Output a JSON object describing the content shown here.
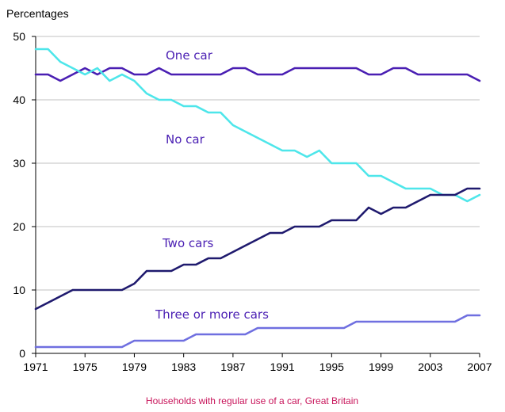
{
  "chart_data": {
    "type": "line",
    "title": "",
    "ylabel": "Percentages",
    "xlabel": "",
    "caption": "Households with regular use of a car, Great Britain",
    "xlim": [
      1971,
      2007
    ],
    "ylim": [
      0,
      50
    ],
    "x_ticks": [
      1971,
      1975,
      1979,
      1983,
      1987,
      1991,
      1995,
      1999,
      2003,
      2007
    ],
    "y_ticks": [
      0,
      10,
      20,
      30,
      40,
      50
    ],
    "grid": "horizontal",
    "x": [
      1971,
      1972,
      1973,
      1974,
      1975,
      1976,
      1977,
      1978,
      1979,
      1980,
      1981,
      1982,
      1983,
      1984,
      1985,
      1986,
      1987,
      1988,
      1989,
      1990,
      1991,
      1992,
      1993,
      1994,
      1995,
      1996,
      1997,
      1998,
      1999,
      2000,
      2001,
      2002,
      2003,
      2004,
      2005,
      2006,
      2007
    ],
    "series": [
      {
        "name": "One car",
        "color": "#4a1fb3",
        "values": [
          44,
          44,
          43,
          44,
          45,
          44,
          45,
          45,
          44,
          44,
          45,
          44,
          44,
          44,
          44,
          44,
          45,
          45,
          44,
          44,
          44,
          45,
          45,
          45,
          45,
          45,
          45,
          44,
          44,
          45,
          45,
          44,
          44,
          44,
          44,
          44,
          43
        ]
      },
      {
        "name": "No car",
        "color": "#4ee6ea",
        "values": [
          48,
          48,
          46,
          45,
          44,
          45,
          43,
          44,
          43,
          41,
          40,
          40,
          39,
          39,
          38,
          38,
          36,
          35,
          34,
          33,
          32,
          32,
          31,
          32,
          30,
          30,
          30,
          28,
          28,
          27,
          26,
          26,
          26,
          25,
          25,
          24,
          25
        ]
      },
      {
        "name": "Two cars",
        "color": "#1f1a6e",
        "values": [
          7,
          8,
          9,
          10,
          10,
          10,
          10,
          10,
          11,
          13,
          13,
          13,
          14,
          14,
          15,
          15,
          16,
          17,
          18,
          19,
          19,
          20,
          20,
          20,
          21,
          21,
          21,
          23,
          22,
          23,
          23,
          24,
          25,
          25,
          25,
          26,
          26
        ]
      },
      {
        "name": "Three or more cars",
        "color": "#6f6fe0",
        "values": [
          1,
          1,
          1,
          1,
          1,
          1,
          1,
          1,
          2,
          2,
          2,
          2,
          2,
          3,
          3,
          3,
          3,
          3,
          4,
          4,
          4,
          4,
          4,
          4,
          4,
          4,
          5,
          5,
          5,
          5,
          5,
          5,
          5,
          5,
          5,
          6,
          6
        ]
      }
    ],
    "colors": {
      "axis": "#000000",
      "grid": "#c0c0c0",
      "label": "#4a1fb3",
      "caption": "#c8155b"
    }
  }
}
